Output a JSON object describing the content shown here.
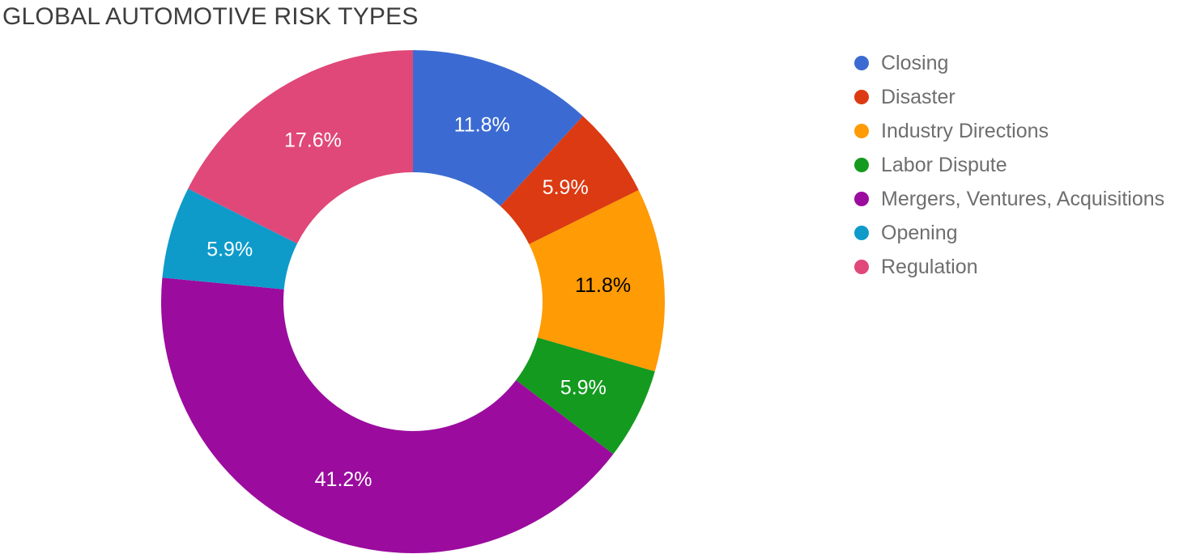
{
  "title": "GLOBAL AUTOMOTIVE RISK TYPES",
  "chart_data": {
    "type": "pie",
    "subtype": "donut",
    "title": "GLOBAL AUTOMOTIVE RISK TYPES",
    "legend_position": "right",
    "direction": "clockwise",
    "start_angle_deg": 0,
    "inner_radius_ratio": 0.515,
    "categories": [
      "Closing",
      "Disaster",
      "Industry Directions",
      "Labor Dispute",
      "Mergers, Ventures, Acquisitions",
      "Opening",
      "Regulation"
    ],
    "values": [
      11.8,
      5.9,
      11.8,
      5.9,
      41.2,
      5.9,
      17.6
    ],
    "value_labels": [
      "11.8%",
      "5.9%",
      "11.8%",
      "5.9%",
      "41.2%",
      "5.9%",
      "17.6%"
    ],
    "colors": [
      "#3B6BD2",
      "#DC3A12",
      "#FF9B05",
      "#149A1F",
      "#9B0C9E",
      "#0E9BC9",
      "#E04879"
    ],
    "value_label_colors": [
      "#ffffff",
      "#ffffff",
      "#000000",
      "#ffffff",
      "#ffffff",
      "#ffffff",
      "#ffffff"
    ],
    "title_color": "#3d3d3d",
    "legend_text_color": "#6e6e6e",
    "background_color": "#ffffff"
  }
}
